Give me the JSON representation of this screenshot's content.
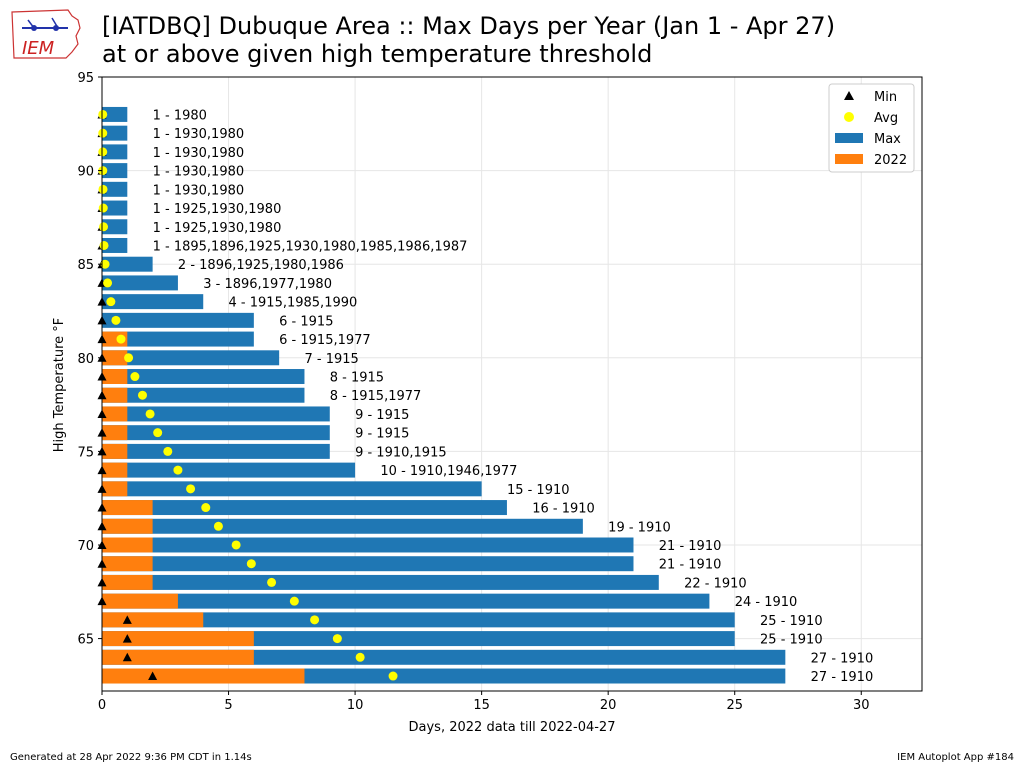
{
  "logo": {
    "text": "IEM"
  },
  "title": {
    "line1": "[IATDBQ] Dubuque Area :: Max Days per Year (Jan 1 - Apr 27)",
    "line2": "at or above given high temperature threshold"
  },
  "footer": {
    "left": "Generated at 28 Apr 2022 9:36 PM CDT in 1.14s",
    "right": "IEM Autoplot App #184"
  },
  "chart_data": {
    "type": "bar",
    "orientation": "horizontal",
    "xlabel": "Days, 2022 data till 2022-04-27",
    "ylabel": "High Temperature °F",
    "xlim": [
      0,
      32.4
    ],
    "ylim": [
      62.2,
      95
    ],
    "xticks": [
      0,
      5,
      10,
      15,
      20,
      25,
      30
    ],
    "yticks": [
      65,
      70,
      75,
      80,
      85,
      90,
      95
    ],
    "grid": true,
    "legend_position": "top-right",
    "legend": [
      {
        "label": "Min",
        "marker": "triangle",
        "color": "#000000"
      },
      {
        "label": "Avg",
        "marker": "circle",
        "color": "#ffff00"
      },
      {
        "label": "Max",
        "marker": "bar",
        "color": "#1f77b4"
      },
      {
        "label": "2022",
        "marker": "bar",
        "color": "#ff7f0e"
      }
    ],
    "thresholds": [
      63,
      64,
      65,
      66,
      67,
      68,
      69,
      70,
      71,
      72,
      73,
      74,
      75,
      76,
      77,
      78,
      79,
      80,
      81,
      82,
      83,
      84,
      85,
      86,
      87,
      88,
      89,
      90,
      91,
      92,
      93
    ],
    "max": [
      27,
      27,
      25,
      25,
      24,
      22,
      21,
      21,
      19,
      16,
      15,
      10,
      9,
      9,
      9,
      8,
      8,
      7,
      6,
      6,
      4,
      3,
      2,
      1,
      1,
      1,
      1,
      1,
      1,
      1,
      1
    ],
    "current": [
      8,
      6,
      6,
      4,
      3,
      2,
      2,
      2,
      2,
      2,
      1,
      1,
      1,
      1,
      1,
      1,
      1,
      1,
      1,
      0,
      0,
      0,
      0,
      0,
      0,
      0,
      0,
      0,
      0,
      0,
      0
    ],
    "avg": [
      11.5,
      10.2,
      9.3,
      8.4,
      7.6,
      6.7,
      5.9,
      5.3,
      4.6,
      4.1,
      3.5,
      3.0,
      2.6,
      2.2,
      1.9,
      1.6,
      1.3,
      1.05,
      0.75,
      0.55,
      0.35,
      0.22,
      0.12,
      0.08,
      0.06,
      0.05,
      0.04,
      0.03,
      0.03,
      0.03,
      0.03
    ],
    "min": [
      2,
      1,
      1,
      1,
      0,
      0,
      0,
      0,
      0,
      0,
      0,
      0,
      0,
      0,
      0,
      0,
      0,
      0,
      0,
      0,
      0,
      0,
      0,
      0,
      0,
      0,
      0,
      0,
      0,
      0,
      0
    ],
    "labels": [
      "27 - 1910",
      "27 - 1910",
      "25 - 1910",
      "25 - 1910",
      "24 - 1910",
      "22 - 1910",
      "21 - 1910",
      "21 - 1910",
      "19 - 1910",
      "16 - 1910",
      "15 - 1910",
      "10 - 1910,1946,1977",
      "9 - 1910,1915",
      "9 - 1915",
      "9 - 1915",
      "8 - 1915,1977",
      "8 - 1915",
      "7 - 1915",
      "6 - 1915,1977",
      "6 - 1915",
      "4 - 1915,1985,1990",
      "3 - 1896,1977,1980",
      "2 - 1896,1925,1980,1986",
      "1 - 1895,1896,1925,1930,1980,1985,1986,1987",
      "1 - 1925,1930,1980",
      "1 - 1925,1930,1980",
      "1 - 1930,1980",
      "1 - 1930,1980",
      "1 - 1930,1980",
      "1 - 1930,1980",
      "1 - 1980"
    ]
  }
}
